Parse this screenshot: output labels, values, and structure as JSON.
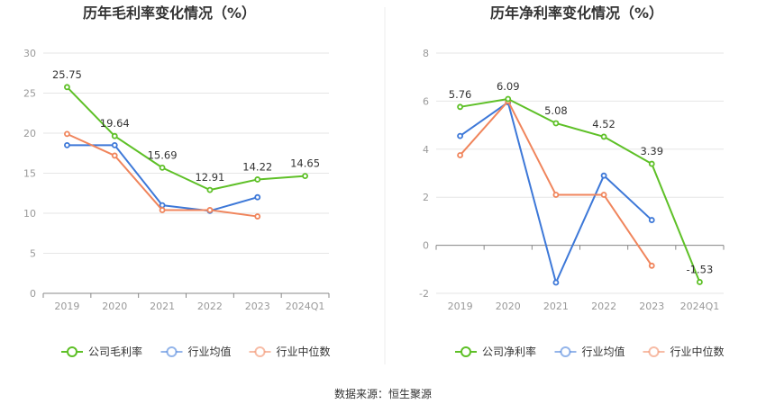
{
  "source_label": "数据来源：恒生聚源",
  "colors": {
    "company": "#5ec027",
    "industry_avg": "#3d78d8",
    "industry_median": "#f0855c"
  },
  "chart_data": [
    {
      "type": "line",
      "title": "历年毛利率变化情况（%）",
      "categories": [
        "2019",
        "2020",
        "2021",
        "2022",
        "2023",
        "2024Q1"
      ],
      "ylim": [
        0,
        30
      ],
      "yticks": [
        0,
        5,
        10,
        15,
        20,
        25,
        30
      ],
      "grid": true,
      "legend_position": "bottom",
      "series": [
        {
          "name": "公司毛利率",
          "values": [
            25.75,
            19.64,
            15.69,
            12.91,
            14.22,
            14.65
          ],
          "labels": [
            "25.75",
            "19.64",
            "15.69",
            "12.91",
            "14.22",
            "14.65"
          ]
        },
        {
          "name": "行业均值",
          "values": [
            18.5,
            18.5,
            11.0,
            10.3,
            12.0,
            null
          ]
        },
        {
          "name": "行业中位数",
          "values": [
            19.9,
            17.2,
            10.4,
            10.4,
            9.6,
            null
          ]
        }
      ]
    },
    {
      "type": "line",
      "title": "历年净利率变化情况（%）",
      "categories": [
        "2019",
        "2020",
        "2021",
        "2022",
        "2023",
        "2024Q1"
      ],
      "ylim": [
        -2,
        8
      ],
      "yticks": [
        -2,
        0,
        2,
        4,
        6,
        8
      ],
      "grid": true,
      "legend_position": "bottom",
      "series": [
        {
          "name": "公司净利率",
          "values": [
            5.76,
            6.09,
            5.08,
            4.52,
            3.39,
            -1.53
          ],
          "labels": [
            "5.76",
            "6.09",
            "5.08",
            "4.52",
            "3.39",
            "-1.53"
          ]
        },
        {
          "name": "行业均值",
          "values": [
            4.55,
            5.95,
            -1.55,
            2.9,
            1.05,
            null
          ]
        },
        {
          "name": "行业中位数",
          "values": [
            3.75,
            6.0,
            2.1,
            2.1,
            -0.85,
            null
          ]
        }
      ]
    }
  ]
}
